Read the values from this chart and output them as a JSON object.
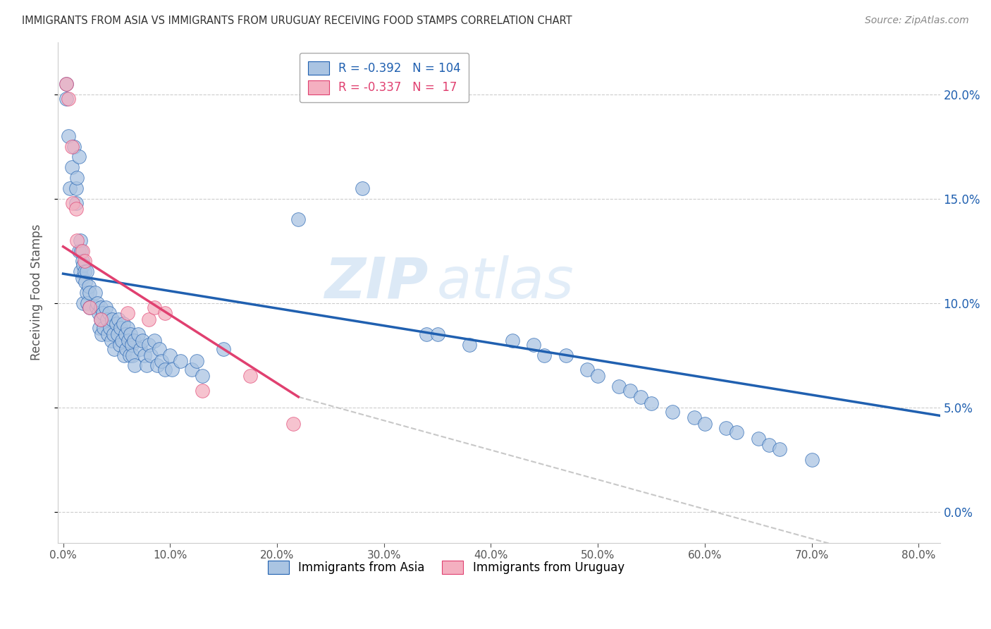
{
  "title": "IMMIGRANTS FROM ASIA VS IMMIGRANTS FROM URUGUAY RECEIVING FOOD STAMPS CORRELATION CHART",
  "source": "Source: ZipAtlas.com",
  "ylabel": "Receiving Food Stamps",
  "legend_label_1": "Immigrants from Asia",
  "legend_label_2": "Immigrants from Uruguay",
  "R1": -0.392,
  "N1": 104,
  "R2": -0.337,
  "N2": 17,
  "color_asia": "#aac4e2",
  "color_uruguay": "#f4afc0",
  "color_line_asia": "#2060b0",
  "color_line_uruguay": "#e04070",
  "color_line_ref": "#c8c8c8",
  "watermark_top": "ZIP",
  "watermark_bot": "atlas",
  "x_ticks": [
    0.0,
    0.1,
    0.2,
    0.3,
    0.4,
    0.5,
    0.6,
    0.7,
    0.8
  ],
  "x_tick_labels": [
    "0.0%",
    "10.0%",
    "20.0%",
    "30.0%",
    "40.0%",
    "50.0%",
    "60.0%",
    "70.0%",
    "80.0%"
  ],
  "y_ticks": [
    0.0,
    0.05,
    0.1,
    0.15,
    0.2
  ],
  "y_tick_labels_right": [
    "0.0%",
    "5.0%",
    "10.0%",
    "15.0%",
    "20.0%"
  ],
  "xlim": [
    -0.005,
    0.82
  ],
  "ylim": [
    -0.015,
    0.225
  ],
  "asia_line_x": [
    0.0,
    0.82
  ],
  "asia_line_y": [
    0.114,
    0.046
  ],
  "uruguay_line_x": [
    0.0,
    0.22
  ],
  "uruguay_line_y": [
    0.127,
    0.055
  ],
  "ref_line_x": [
    0.22,
    0.75
  ],
  "ref_line_y": [
    0.055,
    -0.02
  ],
  "asia_x": [
    0.003,
    0.003,
    0.005,
    0.006,
    0.008,
    0.01,
    0.012,
    0.012,
    0.013,
    0.015,
    0.015,
    0.016,
    0.016,
    0.017,
    0.018,
    0.018,
    0.019,
    0.019,
    0.02,
    0.021,
    0.022,
    0.022,
    0.023,
    0.024,
    0.025,
    0.025,
    0.03,
    0.031,
    0.032,
    0.033,
    0.034,
    0.035,
    0.035,
    0.036,
    0.037,
    0.038,
    0.04,
    0.041,
    0.042,
    0.043,
    0.044,
    0.045,
    0.046,
    0.047,
    0.048,
    0.05,
    0.051,
    0.052,
    0.053,
    0.054,
    0.055,
    0.056,
    0.057,
    0.058,
    0.059,
    0.06,
    0.061,
    0.062,
    0.063,
    0.064,
    0.065,
    0.066,
    0.067,
    0.07,
    0.072,
    0.074,
    0.076,
    0.078,
    0.08,
    0.082,
    0.085,
    0.088,
    0.09,
    0.092,
    0.095,
    0.1,
    0.102,
    0.11,
    0.12,
    0.125,
    0.13,
    0.15,
    0.22,
    0.28,
    0.34,
    0.35,
    0.38,
    0.42,
    0.44,
    0.45,
    0.47,
    0.49,
    0.5,
    0.52,
    0.53,
    0.54,
    0.55,
    0.57,
    0.59,
    0.6,
    0.62,
    0.63,
    0.65,
    0.66,
    0.67,
    0.7
  ],
  "asia_y": [
    0.205,
    0.198,
    0.18,
    0.155,
    0.165,
    0.175,
    0.155,
    0.148,
    0.16,
    0.17,
    0.125,
    0.13,
    0.115,
    0.125,
    0.12,
    0.112,
    0.118,
    0.1,
    0.115,
    0.11,
    0.105,
    0.115,
    0.1,
    0.108,
    0.105,
    0.098,
    0.105,
    0.098,
    0.1,
    0.095,
    0.088,
    0.098,
    0.092,
    0.085,
    0.095,
    0.088,
    0.098,
    0.092,
    0.085,
    0.095,
    0.088,
    0.082,
    0.092,
    0.085,
    0.078,
    0.09,
    0.085,
    0.092,
    0.08,
    0.088,
    0.082,
    0.09,
    0.075,
    0.085,
    0.078,
    0.088,
    0.082,
    0.075,
    0.085,
    0.08,
    0.075,
    0.082,
    0.07,
    0.085,
    0.078,
    0.082,
    0.075,
    0.07,
    0.08,
    0.075,
    0.082,
    0.07,
    0.078,
    0.072,
    0.068,
    0.075,
    0.068,
    0.072,
    0.068,
    0.072,
    0.065,
    0.078,
    0.14,
    0.155,
    0.085,
    0.085,
    0.08,
    0.082,
    0.08,
    0.075,
    0.075,
    0.068,
    0.065,
    0.06,
    0.058,
    0.055,
    0.052,
    0.048,
    0.045,
    0.042,
    0.04,
    0.038,
    0.035,
    0.032,
    0.03,
    0.025
  ],
  "uruguay_x": [
    0.003,
    0.005,
    0.008,
    0.009,
    0.012,
    0.013,
    0.018,
    0.02,
    0.025,
    0.035,
    0.06,
    0.08,
    0.085,
    0.095,
    0.13,
    0.175,
    0.215
  ],
  "uruguay_y": [
    0.205,
    0.198,
    0.175,
    0.148,
    0.145,
    0.13,
    0.125,
    0.12,
    0.098,
    0.092,
    0.095,
    0.092,
    0.098,
    0.095,
    0.058,
    0.065,
    0.042
  ]
}
